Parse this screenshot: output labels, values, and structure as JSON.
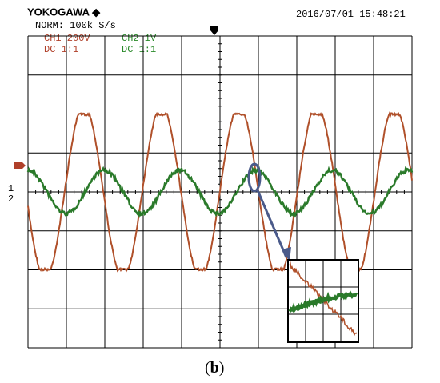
{
  "header": {
    "brand": "YOKOGAWA ◆",
    "mode": "NORM: 100k S/s",
    "timestamp": "2016/07/01 15:48:21"
  },
  "channels": [
    {
      "name": "CH1 200V",
      "coupling": "DC  1:1",
      "marker": "1"
    },
    {
      "name": "CH2 1V",
      "coupling": "DC  1:1",
      "marker": "2"
    }
  ],
  "caption": {
    "open": "(",
    "label": "b",
    "close": ")"
  }
}
